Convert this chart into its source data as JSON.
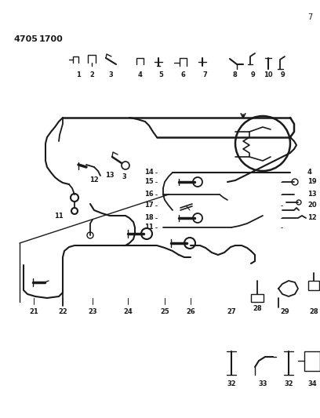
{
  "background_color": "#ffffff",
  "line_color": "#1a1a1a",
  "figsize": [
    4.08,
    5.33
  ],
  "dpi": 100,
  "title1": "4705",
  "title2": "1700",
  "page_num": "7"
}
